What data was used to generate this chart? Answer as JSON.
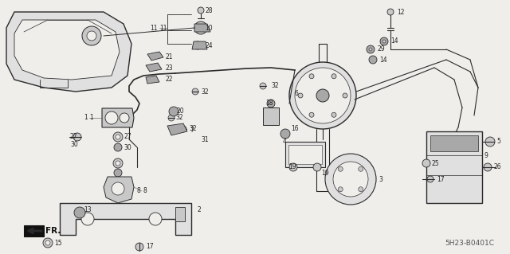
{
  "fig_width": 6.4,
  "fig_height": 3.19,
  "dpi": 100,
  "bg": "#f0eeeb",
  "line_col": "#2a2a2a",
  "gray_fill": "#c8c8c8",
  "gray_mid": "#a8a8a8",
  "gray_light": "#e0e0e0",
  "label_col": "#222222",
  "fs": 5.5,
  "diagram_code": "5H23-B0401C"
}
